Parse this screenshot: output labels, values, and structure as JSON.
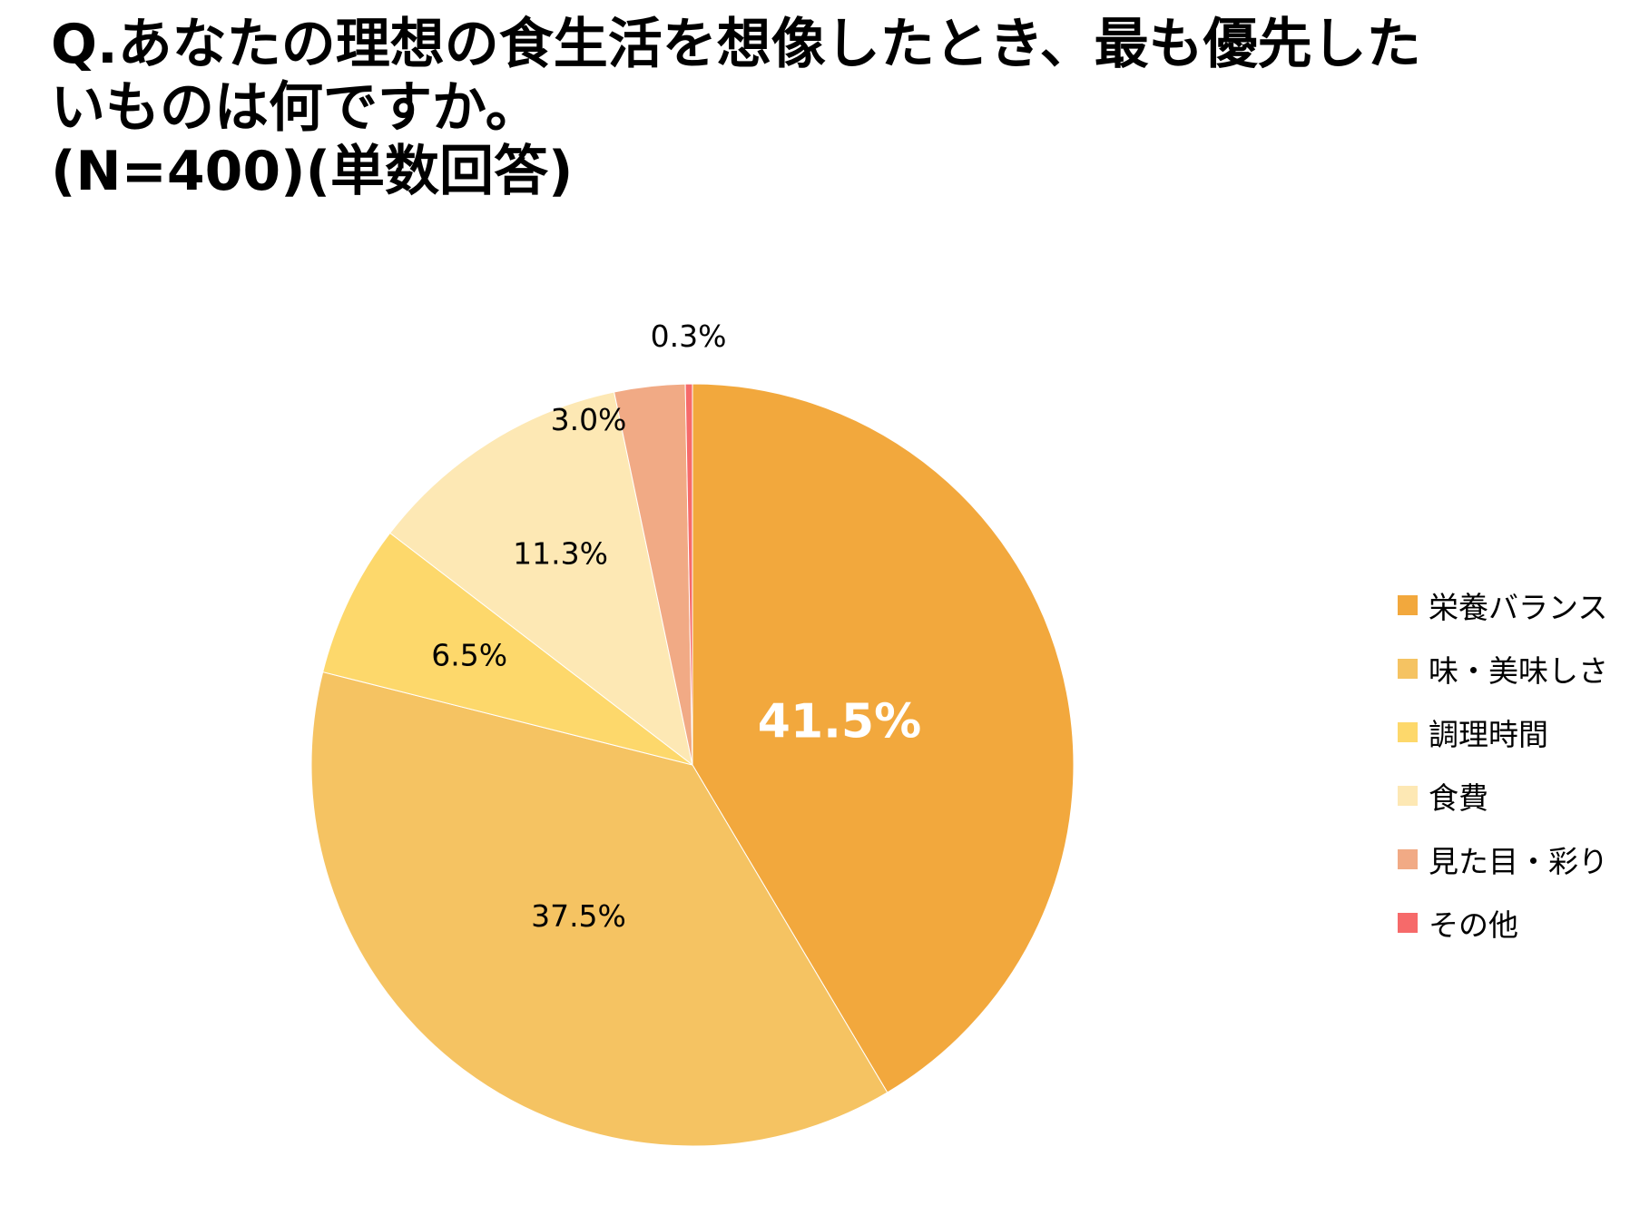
{
  "chart_data": {
    "type": "pie",
    "title_lines": [
      "Q.あなたの理想の食生活を想像したとき、最も優先した",
      "いものは何ですか。",
      "(N=400)(単数回答)"
    ],
    "slices": [
      {
        "name": "栄養バランス",
        "value": 41.5,
        "label": "41.5%",
        "color": "#F2A83D"
      },
      {
        "name": "味・美味しさ",
        "value": 37.5,
        "label": "37.5%",
        "color": "#F5C362"
      },
      {
        "name": "調理時間",
        "value": 6.5,
        "label": "6.5%",
        "color": "#FDD86B"
      },
      {
        "name": "食費",
        "value": 11.3,
        "label": "11.3%",
        "color": "#FDE8B4"
      },
      {
        "name": "見た目・彩り",
        "value": 3.0,
        "label": "3.0%",
        "color": "#F1AA85"
      },
      {
        "name": "その他",
        "value": 0.3,
        "label": "0.3%",
        "color": "#F66A6A"
      }
    ],
    "legend_position": "right"
  }
}
